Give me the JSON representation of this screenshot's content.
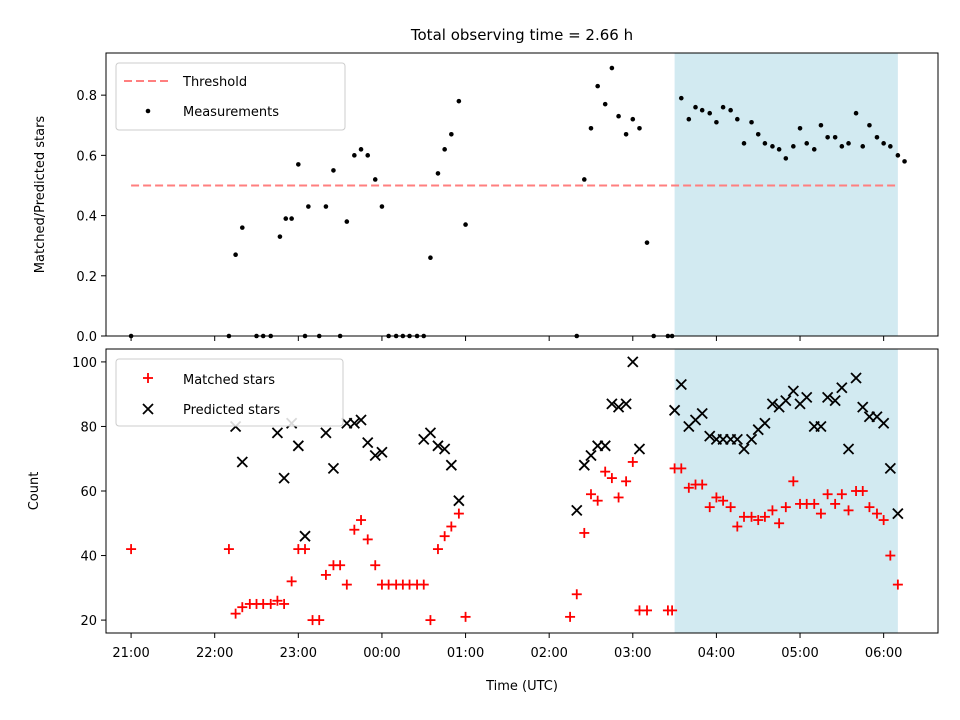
{
  "chart_data": [
    {
      "type": "scatter",
      "title": "Total observing time = 2.66 h",
      "xlabel": "",
      "ylabel": "Matched/Predicted stars",
      "ylim": [
        0,
        0.94
      ],
      "yticks": [
        "0.0",
        "0.2",
        "0.4",
        "0.6",
        "0.8"
      ],
      "ytick_values": [
        0,
        0.2,
        0.4,
        0.6,
        0.8
      ],
      "shaded_region_hours": [
        3.5,
        6.17
      ],
      "legend_position": "upper-left",
      "threshold": {
        "name": "Threshold",
        "value": 0.5,
        "x_range": [
          21.0,
          30.17
        ],
        "color": "#ff7f7f"
      },
      "series": [
        {
          "name": "Measurements",
          "marker": "dot",
          "color": "#000000",
          "points": [
            [
              21.0,
              0.0
            ],
            [
              22.17,
              0.0
            ],
            [
              22.25,
              0.27
            ],
            [
              22.33,
              0.36
            ],
            [
              22.5,
              0.0
            ],
            [
              22.58,
              0.0
            ],
            [
              22.67,
              0.0
            ],
            [
              22.78,
              0.33
            ],
            [
              22.85,
              0.39
            ],
            [
              22.92,
              0.39
            ],
            [
              23.0,
              0.57
            ],
            [
              23.08,
              0.0
            ],
            [
              23.12,
              0.43
            ],
            [
              23.25,
              0.0
            ],
            [
              23.33,
              0.43
            ],
            [
              23.42,
              0.55
            ],
            [
              23.5,
              0.0
            ],
            [
              23.58,
              0.38
            ],
            [
              23.67,
              0.6
            ],
            [
              23.75,
              0.62
            ],
            [
              23.83,
              0.6
            ],
            [
              23.92,
              0.52
            ],
            [
              24.0,
              0.43
            ],
            [
              24.08,
              0.0
            ],
            [
              24.17,
              0.0
            ],
            [
              24.25,
              0.0
            ],
            [
              24.33,
              0.0
            ],
            [
              24.42,
              0.0
            ],
            [
              24.5,
              0.0
            ],
            [
              24.58,
              0.26
            ],
            [
              24.67,
              0.54
            ],
            [
              24.75,
              0.62
            ],
            [
              24.83,
              0.67
            ],
            [
              24.92,
              0.78
            ],
            [
              25.0,
              0.37
            ],
            [
              26.33,
              0.0
            ],
            [
              26.42,
              0.52
            ],
            [
              26.5,
              0.69
            ],
            [
              26.58,
              0.83
            ],
            [
              26.67,
              0.77
            ],
            [
              26.75,
              0.89
            ],
            [
              26.83,
              0.73
            ],
            [
              26.92,
              0.67
            ],
            [
              27.0,
              0.72
            ],
            [
              27.08,
              0.69
            ],
            [
              27.17,
              0.31
            ],
            [
              27.25,
              0.0
            ],
            [
              27.42,
              0.0
            ],
            [
              27.47,
              0.0
            ],
            [
              27.58,
              0.79
            ],
            [
              27.67,
              0.72
            ],
            [
              27.75,
              0.76
            ],
            [
              27.83,
              0.75
            ],
            [
              27.92,
              0.74
            ],
            [
              28.0,
              0.71
            ],
            [
              28.08,
              0.76
            ],
            [
              28.17,
              0.75
            ],
            [
              28.25,
              0.72
            ],
            [
              28.33,
              0.64
            ],
            [
              28.42,
              0.71
            ],
            [
              28.5,
              0.67
            ],
            [
              28.58,
              0.64
            ],
            [
              28.67,
              0.63
            ],
            [
              28.75,
              0.62
            ],
            [
              28.83,
              0.59
            ],
            [
              28.92,
              0.63
            ],
            [
              29.0,
              0.69
            ],
            [
              29.08,
              0.64
            ],
            [
              29.17,
              0.62
            ],
            [
              29.25,
              0.7
            ],
            [
              29.33,
              0.66
            ],
            [
              29.42,
              0.66
            ],
            [
              29.5,
              0.63
            ],
            [
              29.58,
              0.64
            ],
            [
              29.67,
              0.74
            ],
            [
              29.75,
              0.63
            ],
            [
              29.83,
              0.7
            ],
            [
              29.92,
              0.66
            ],
            [
              30.0,
              0.64
            ],
            [
              30.08,
              0.63
            ],
            [
              30.17,
              0.6
            ],
            [
              30.25,
              0.58
            ]
          ]
        }
      ]
    },
    {
      "type": "scatter",
      "title": "",
      "xlabel": "Time (UTC)",
      "ylabel": "Count",
      "ylim": [
        16,
        104
      ],
      "yticks": [
        "20",
        "40",
        "60",
        "80",
        "100"
      ],
      "ytick_values": [
        20,
        40,
        60,
        80,
        100
      ],
      "xlim_hours": [
        20.7,
        30.65
      ],
      "xticks": [
        "21:00",
        "22:00",
        "23:00",
        "00:00",
        "01:00",
        "02:00",
        "03:00",
        "04:00",
        "05:00",
        "06:00"
      ],
      "xtick_values": [
        21,
        22,
        23,
        24,
        25,
        26,
        27,
        28,
        29,
        30
      ],
      "shaded_region_hours": [
        3.5,
        6.17
      ],
      "legend_position": "upper-left",
      "series": [
        {
          "name": "Matched stars",
          "marker": "plus",
          "color": "#ff0000",
          "points": [
            [
              21.0,
              42
            ],
            [
              22.17,
              42
            ],
            [
              22.25,
              22
            ],
            [
              22.33,
              24
            ],
            [
              22.42,
              25
            ],
            [
              22.5,
              25
            ],
            [
              22.58,
              25
            ],
            [
              22.67,
              25
            ],
            [
              22.75,
              26
            ],
            [
              22.83,
              25
            ],
            [
              22.92,
              32
            ],
            [
              23.0,
              42
            ],
            [
              23.08,
              42
            ],
            [
              23.17,
              20
            ],
            [
              23.25,
              20
            ],
            [
              23.33,
              34
            ],
            [
              23.42,
              37
            ],
            [
              23.5,
              37
            ],
            [
              23.58,
              31
            ],
            [
              23.67,
              48
            ],
            [
              23.75,
              51
            ],
            [
              23.83,
              45
            ],
            [
              23.92,
              37
            ],
            [
              24.0,
              31
            ],
            [
              24.08,
              31
            ],
            [
              24.17,
              31
            ],
            [
              24.25,
              31
            ],
            [
              24.33,
              31
            ],
            [
              24.42,
              31
            ],
            [
              24.5,
              31
            ],
            [
              24.58,
              20
            ],
            [
              24.67,
              42
            ],
            [
              24.75,
              46
            ],
            [
              24.83,
              49
            ],
            [
              24.92,
              53
            ],
            [
              25.0,
              21
            ],
            [
              26.25,
              21
            ],
            [
              26.33,
              28
            ],
            [
              26.42,
              47
            ],
            [
              26.5,
              59
            ],
            [
              26.58,
              57
            ],
            [
              26.67,
              66
            ],
            [
              26.75,
              64
            ],
            [
              26.83,
              58
            ],
            [
              26.92,
              63
            ],
            [
              27.0,
              69
            ],
            [
              27.08,
              23
            ],
            [
              27.17,
              23
            ],
            [
              27.42,
              23
            ],
            [
              27.47,
              23
            ],
            [
              27.5,
              67
            ],
            [
              27.58,
              67
            ],
            [
              27.67,
              61
            ],
            [
              27.75,
              62
            ],
            [
              27.83,
              62
            ],
            [
              27.92,
              55
            ],
            [
              28.0,
              58
            ],
            [
              28.08,
              57
            ],
            [
              28.17,
              55
            ],
            [
              28.25,
              49
            ],
            [
              28.33,
              52
            ],
            [
              28.42,
              52
            ],
            [
              28.5,
              51
            ],
            [
              28.58,
              52
            ],
            [
              28.67,
              54
            ],
            [
              28.75,
              50
            ],
            [
              28.83,
              55
            ],
            [
              28.92,
              63
            ],
            [
              29.0,
              56
            ],
            [
              29.08,
              56
            ],
            [
              29.17,
              56
            ],
            [
              29.25,
              53
            ],
            [
              29.33,
              59
            ],
            [
              29.42,
              56
            ],
            [
              29.5,
              59
            ],
            [
              29.58,
              54
            ],
            [
              29.67,
              60
            ],
            [
              29.75,
              60
            ],
            [
              29.83,
              55
            ],
            [
              29.92,
              53
            ],
            [
              30.0,
              51
            ],
            [
              30.08,
              40
            ],
            [
              30.17,
              31
            ]
          ]
        },
        {
          "name": "Predicted stars",
          "marker": "x",
          "color": "#000000",
          "points": [
            [
              22.25,
              80
            ],
            [
              22.33,
              69
            ],
            [
              22.75,
              78
            ],
            [
              22.83,
              64
            ],
            [
              22.92,
              81
            ],
            [
              23.0,
              74
            ],
            [
              23.08,
              46
            ],
            [
              23.33,
              78
            ],
            [
              23.42,
              67
            ],
            [
              23.58,
              81
            ],
            [
              23.67,
              81
            ],
            [
              23.75,
              82
            ],
            [
              23.83,
              75
            ],
            [
              23.92,
              71
            ],
            [
              24.0,
              72
            ],
            [
              24.5,
              76
            ],
            [
              24.58,
              78
            ],
            [
              24.67,
              74
            ],
            [
              24.75,
              73
            ],
            [
              24.83,
              68
            ],
            [
              24.92,
              57
            ],
            [
              26.33,
              54
            ],
            [
              26.42,
              68
            ],
            [
              26.5,
              71
            ],
            [
              26.58,
              74
            ],
            [
              26.67,
              74
            ],
            [
              26.75,
              87
            ],
            [
              26.83,
              86
            ],
            [
              26.92,
              87
            ],
            [
              27.0,
              100
            ],
            [
              27.08,
              73
            ],
            [
              27.5,
              85
            ],
            [
              27.58,
              93
            ],
            [
              27.67,
              80
            ],
            [
              27.75,
              82
            ],
            [
              27.83,
              84
            ],
            [
              27.92,
              77
            ],
            [
              28.0,
              76
            ],
            [
              28.08,
              76
            ],
            [
              28.17,
              76
            ],
            [
              28.25,
              76
            ],
            [
              28.33,
              73
            ],
            [
              28.42,
              76
            ],
            [
              28.5,
              79
            ],
            [
              28.58,
              81
            ],
            [
              28.67,
              87
            ],
            [
              28.75,
              86
            ],
            [
              28.83,
              88
            ],
            [
              28.92,
              91
            ],
            [
              29.0,
              87
            ],
            [
              29.08,
              89
            ],
            [
              29.17,
              80
            ],
            [
              29.25,
              80
            ],
            [
              29.33,
              89
            ],
            [
              29.42,
              88
            ],
            [
              29.5,
              92
            ],
            [
              29.58,
              73
            ],
            [
              29.67,
              95
            ],
            [
              29.75,
              86
            ],
            [
              29.83,
              83
            ],
            [
              29.92,
              83
            ],
            [
              30.0,
              81
            ],
            [
              30.08,
              67
            ],
            [
              30.17,
              53
            ]
          ]
        }
      ]
    }
  ]
}
